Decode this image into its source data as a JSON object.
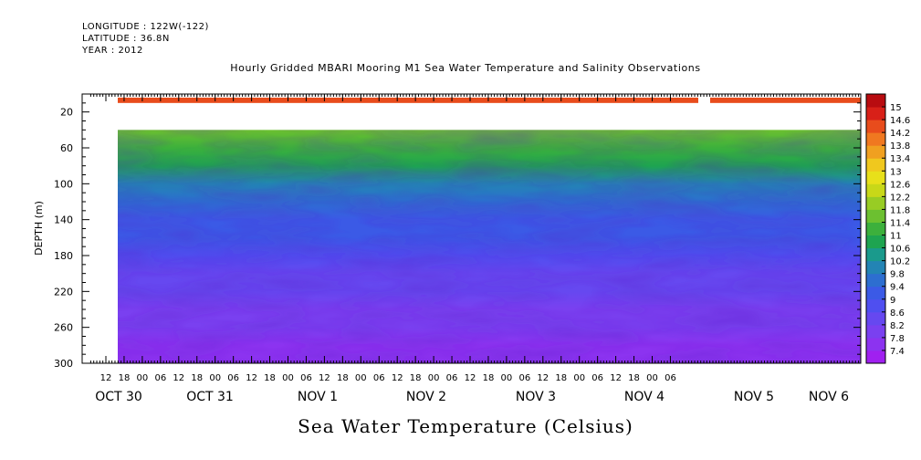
{
  "header": {
    "longitude": "LONGITUDE : 122W(-122)",
    "latitude": "LATITUDE : 36.8N",
    "year": "YEAR : 2012"
  },
  "chart_data": {
    "type": "heatmap",
    "title": "Hourly Gridded MBARI Mooring M1 Sea Water Temperature and Salinity Observations",
    "xlabel": "Sea Water Temperature (Celsius)",
    "ylabel": "DEPTH (m)",
    "ylim": [
      300,
      0
    ],
    "y_ticks": [
      20,
      60,
      100,
      140,
      180,
      220,
      260,
      300
    ],
    "x_hour_ticks": [
      "12",
      "18",
      "00",
      "06",
      "12",
      "18",
      "00",
      "06",
      "12",
      "18",
      "00",
      "06",
      "12",
      "18",
      "00",
      "06",
      "12",
      "18",
      "00",
      "06",
      "12",
      "18",
      "00",
      "06",
      "12",
      "18",
      "00",
      "06",
      "12",
      "18",
      "00",
      "06"
    ],
    "x_day_labels": [
      "OCT 30",
      "OCT 31",
      "NOV  1",
      "NOV  2",
      "NOV  3",
      "NOV  4",
      "NOV  5",
      "NOV  6"
    ],
    "colorbar_levels": [
      7.4,
      7.8,
      8.2,
      8.6,
      9,
      9.4,
      9.8,
      10.2,
      10.6,
      11,
      11.4,
      11.8,
      12.2,
      12.6,
      13,
      13.4,
      13.8,
      14.2,
      14.6,
      15
    ],
    "colorbar_colors": [
      "#a020f0",
      "#8c33f0",
      "#7a40f0",
      "#6648f0",
      "#4f4ff0",
      "#3b5ae6",
      "#2d6ed0",
      "#2384b4",
      "#1a9a8c",
      "#1ea450",
      "#3cb03c",
      "#6cc030",
      "#98cc24",
      "#c8d818",
      "#e8e01a",
      "#f0c81e",
      "#f0a020",
      "#f07820",
      "#e84c1c",
      "#d82018",
      "#b80c10"
    ],
    "depth_profile": [
      {
        "depth": 10,
        "temperature": 14.4
      },
      {
        "depth": 40,
        "temperature": 11.6
      },
      {
        "depth": 60,
        "temperature": 11.2
      },
      {
        "depth": 80,
        "temperature": 10.6
      },
      {
        "depth": 100,
        "temperature": 10.0
      },
      {
        "depth": 120,
        "temperature": 9.7
      },
      {
        "depth": 140,
        "temperature": 9.3
      },
      {
        "depth": 160,
        "temperature": 9.0
      },
      {
        "depth": 180,
        "temperature": 8.7
      },
      {
        "depth": 200,
        "temperature": 8.4
      },
      {
        "depth": 220,
        "temperature": 8.2
      },
      {
        "depth": 240,
        "temperature": 8.0
      },
      {
        "depth": 260,
        "temperature": 7.8
      },
      {
        "depth": 280,
        "temperature": 7.6
      },
      {
        "depth": 300,
        "temperature": 7.5
      }
    ]
  }
}
